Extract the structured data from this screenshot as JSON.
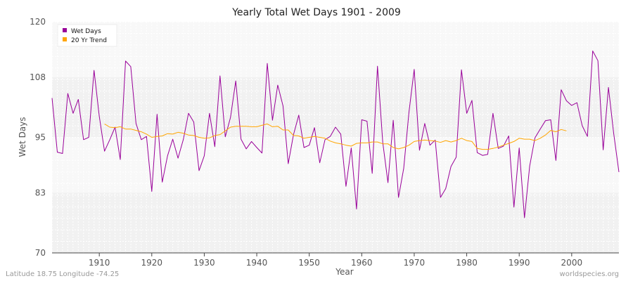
{
  "chart_data": {
    "type": "line",
    "title": "Yearly Total Wet Days 1901 - 2009",
    "xlabel": "Year",
    "ylabel": "Wet Days",
    "xlim": [
      1901,
      2009
    ],
    "ylim": [
      70,
      120
    ],
    "yticks": [
      "70",
      "83",
      "95",
      "108",
      "120"
    ],
    "xticks": [
      "1910",
      "1920",
      "1930",
      "1940",
      "1950",
      "1960",
      "1970",
      "1980",
      "1990",
      "2000"
    ],
    "grid": true,
    "legend_position": "top-left",
    "series": [
      {
        "name": "Wet Days",
        "color": "#990099",
        "x": [
          1901,
          1902,
          1903,
          1904,
          1905,
          1906,
          1907,
          1908,
          1909,
          1910,
          1911,
          1912,
          1913,
          1914,
          1915,
          1916,
          1917,
          1918,
          1919,
          1920,
          1921,
          1922,
          1923,
          1924,
          1925,
          1926,
          1927,
          1928,
          1929,
          1930,
          1931,
          1932,
          1933,
          1934,
          1935,
          1936,
          1937,
          1938,
          1939,
          1940,
          1941,
          1942,
          1943,
          1944,
          1945,
          1946,
          1947,
          1948,
          1949,
          1950,
          1951,
          1952,
          1953,
          1954,
          1955,
          1956,
          1957,
          1958,
          1959,
          1960,
          1961,
          1962,
          1963,
          1964,
          1965,
          1966,
          1967,
          1968,
          1969,
          1970,
          1971,
          1972,
          1973,
          1974,
          1975,
          1976,
          1977,
          1978,
          1979,
          1980,
          1981,
          1982,
          1983,
          1984,
          1985,
          1986,
          1987,
          1988,
          1989,
          1990,
          1991,
          1992,
          1993,
          1994,
          1995,
          1996,
          1997,
          1998,
          1999,
          2000,
          2001,
          2002,
          2003,
          2004,
          2005,
          2006,
          2007,
          2008,
          2009
        ],
        "values": [
          103.5,
          91.8,
          91.5,
          104.5,
          100.2,
          103.2,
          94.5,
          95.0,
          109.5,
          99.5,
          92.0,
          94.5,
          97.2,
          90.2,
          111.5,
          110.3,
          98.0,
          94.5,
          95.2,
          83.3,
          100.0,
          85.3,
          91.0,
          94.6,
          90.5,
          94.5,
          100.2,
          98.3,
          87.8,
          91.0,
          100.2,
          93.0,
          108.3,
          95.1,
          99.3,
          107.2,
          94.6,
          92.5,
          94.1,
          92.8,
          91.6,
          111.0,
          98.7,
          106.3,
          101.8,
          89.3,
          95.6,
          99.8,
          92.8,
          93.3,
          97.1,
          89.5,
          94.5,
          95.2,
          97.2,
          95.7,
          84.4,
          92.7,
          79.5,
          98.8,
          98.5,
          87.2,
          110.4,
          93.9,
          85.2,
          98.7,
          82.0,
          88.3,
          100.5,
          109.7,
          92.2,
          98.0,
          93.3,
          94.4,
          82.0,
          83.9,
          88.7,
          90.7,
          109.6,
          100.2,
          103.0,
          91.7,
          91.1,
          91.3,
          100.2,
          92.6,
          93.1,
          95.3,
          79.9,
          92.7,
          77.6,
          88.8,
          94.9,
          96.8,
          98.6,
          98.8,
          90.0,
          105.3,
          102.9,
          101.9,
          102.5,
          97.5,
          95.2,
          113.7,
          111.6,
          92.3,
          105.8,
          95.9,
          87.5
        ]
      },
      {
        "name": "20 Yr Trend",
        "color": "#ffa500",
        "x": [
          1911,
          1912,
          1913,
          1914,
          1915,
          1916,
          1917,
          1918,
          1919,
          1920,
          1921,
          1922,
          1923,
          1924,
          1925,
          1926,
          1927,
          1928,
          1929,
          1930,
          1931,
          1932,
          1933,
          1934,
          1935,
          1936,
          1937,
          1938,
          1939,
          1940,
          1941,
          1942,
          1943,
          1944,
          1945,
          1946,
          1947,
          1948,
          1949,
          1950,
          1951,
          1952,
          1953,
          1954,
          1955,
          1956,
          1957,
          1958,
          1959,
          1960,
          1961,
          1962,
          1963,
          1964,
          1965,
          1966,
          1967,
          1968,
          1969,
          1970,
          1971,
          1972,
          1973,
          1974,
          1975,
          1976,
          1977,
          1978,
          1979,
          1980,
          1981,
          1982,
          1983,
          1984,
          1985,
          1986,
          1987,
          1988,
          1989,
          1990,
          1991,
          1992,
          1993,
          1994,
          1995,
          1996,
          1997,
          1998,
          1999
        ],
        "values": [
          97.9,
          97.2,
          97.1,
          97.3,
          96.8,
          96.8,
          96.5,
          96.2,
          95.7,
          95.0,
          95.2,
          95.3,
          95.8,
          95.7,
          96.1,
          95.9,
          95.5,
          95.4,
          95.0,
          94.8,
          94.9,
          95.4,
          95.6,
          96.4,
          97.2,
          97.4,
          97.4,
          97.4,
          97.3,
          97.3,
          97.6,
          97.9,
          97.3,
          97.4,
          96.6,
          96.6,
          95.4,
          95.3,
          94.8,
          95.0,
          95.2,
          95.0,
          94.8,
          94.2,
          93.8,
          93.6,
          93.3,
          93.1,
          93.7,
          93.8,
          93.8,
          94.0,
          94.0,
          93.6,
          93.6,
          92.8,
          92.5,
          92.8,
          93.3,
          94.1,
          94.3,
          94.4,
          94.3,
          94.2,
          93.9,
          94.3,
          94.0,
          94.3,
          94.8,
          94.3,
          94.1,
          92.6,
          92.4,
          92.4,
          92.6,
          92.9,
          93.3,
          93.7,
          94.1,
          94.8,
          94.6,
          94.6,
          94.3,
          94.8,
          95.5,
          96.5,
          96.2,
          96.7,
          96.4
        ]
      }
    ]
  },
  "footer": {
    "left": "Latitude 18.75 Longitude -74.25",
    "right": "worldspecies.org"
  }
}
